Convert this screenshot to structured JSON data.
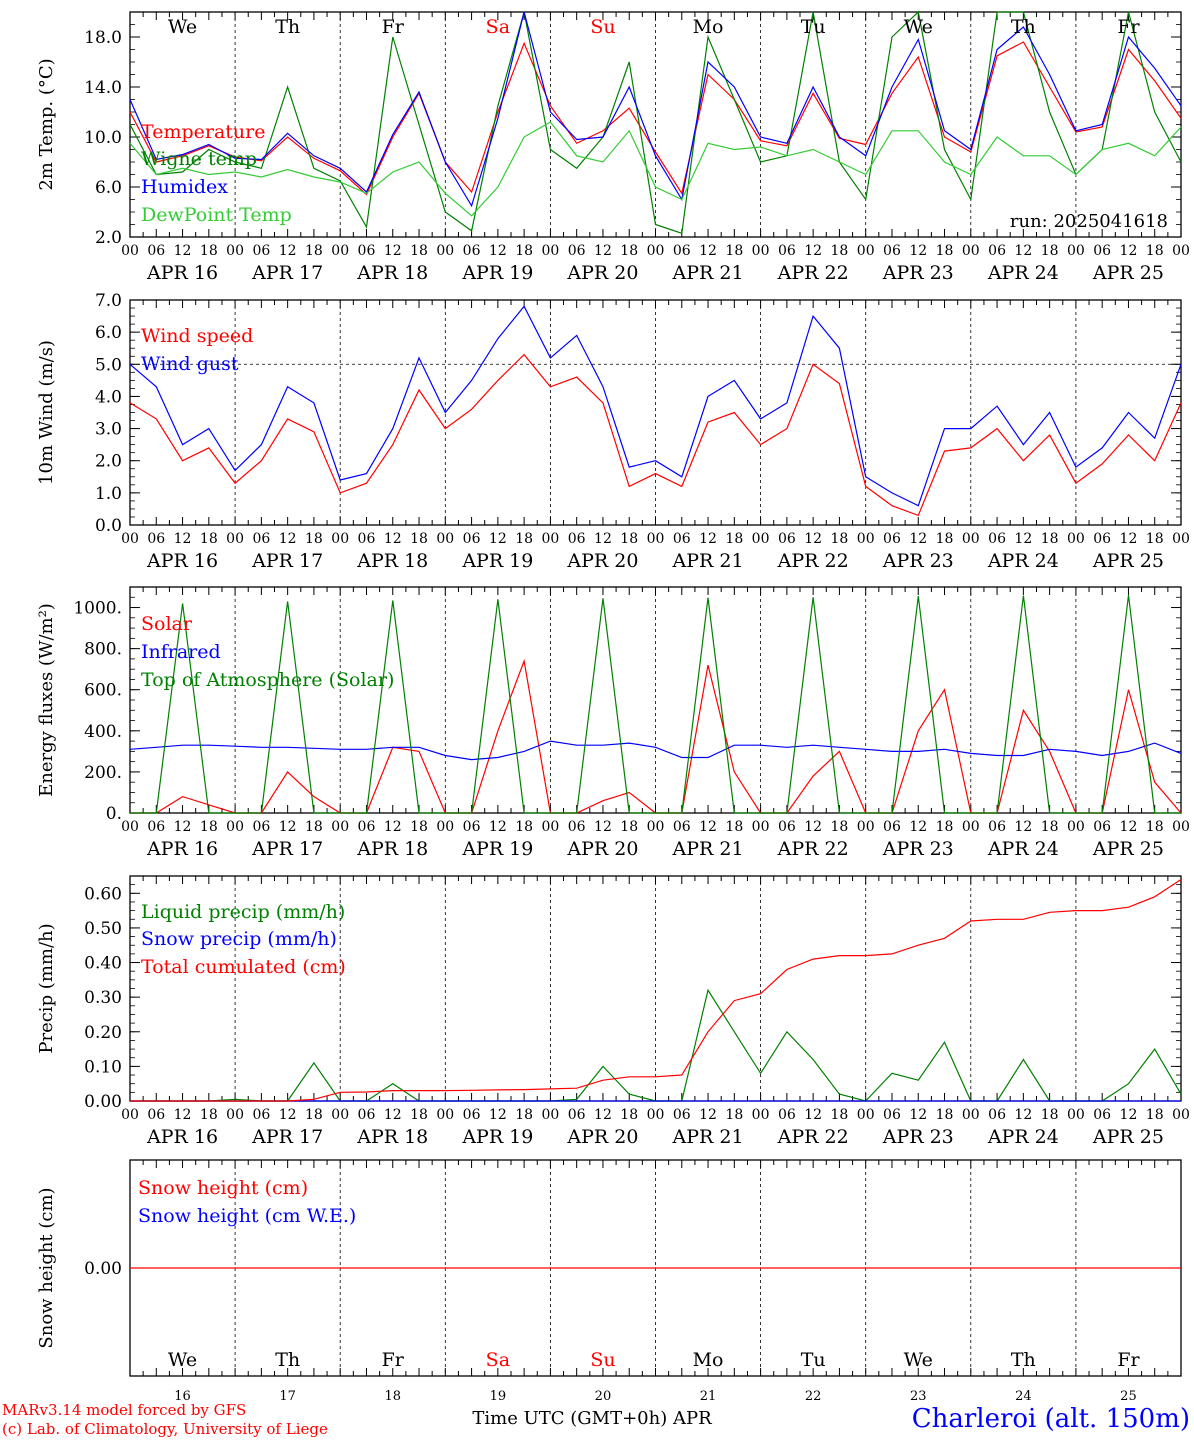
{
  "colors": {
    "red": "#ff0000",
    "blue": "#0000ff",
    "green": "#008000",
    "lightgreen": "#33cc33",
    "black": "#000000"
  },
  "day_abbr": [
    "We",
    "Th",
    "Fr",
    "Sa",
    "Su",
    "Mo",
    "Tu",
    "We",
    "Th",
    "Fr"
  ],
  "weekend_days": [
    3,
    4
  ],
  "date_labels": [
    "APR 16",
    "APR 17",
    "APR 18",
    "APR 19",
    "APR 20",
    "APR 21",
    "APR 22",
    "APR 23",
    "APR 24",
    "APR 25"
  ],
  "day_numbers": [
    "16",
    "17",
    "18",
    "19",
    "20",
    "21",
    "22",
    "23",
    "24",
    "25"
  ],
  "hour_ticks": [
    "00",
    "06",
    "12",
    "18"
  ],
  "hour_end": "00",
  "footer": {
    "model": "MARv3.14 model forced by GFS",
    "lab": "(c) Lab. of Climatology, University of Liege",
    "xlabel": "Time UTC (GMT+0h) APR",
    "station": "Charleroi (alt. 150m)"
  },
  "chart_data": [
    {
      "type": "line",
      "ylabel": "2m Temp. (°C)",
      "ylim": [
        2,
        20
      ],
      "yticks": [
        "2.0",
        "6.0",
        "10.0",
        "14.0",
        "18.0"
      ],
      "run_label": "run: 2025041618",
      "x_hours": [
        0,
        6,
        12,
        18,
        24,
        30,
        36,
        42,
        48,
        54,
        60,
        66,
        72,
        78,
        84,
        90,
        96,
        102,
        108,
        114,
        120,
        126,
        132,
        138,
        144,
        150,
        156,
        162,
        168,
        174,
        180,
        186,
        192,
        198,
        204,
        210,
        216,
        222,
        228,
        234,
        240
      ],
      "series": [
        {
          "name": "Temperature",
          "color": "#ff0000",
          "values": [
            12.0,
            8.0,
            8.5,
            9.3,
            8.4,
            8.1,
            10.0,
            8.3,
            7.3,
            5.4,
            10.0,
            13.5,
            8.0,
            5.6,
            12.0,
            17.5,
            12.5,
            9.5,
            10.5,
            12.3,
            8.8,
            5.5,
            15.0,
            13.0,
            9.7,
            9.3,
            13.5,
            9.9,
            9.4,
            13.5,
            16.4,
            10.0,
            8.8,
            16.5,
            17.6,
            14.0,
            10.4,
            10.8,
            17.0,
            14.5,
            11.5
          ]
        },
        {
          "name": "Wigne temp",
          "color": "#008000",
          "values": [
            11.0,
            7.0,
            7.2,
            9.0,
            8.0,
            7.5,
            14.0,
            7.5,
            6.5,
            2.8,
            18.0,
            11.0,
            4.0,
            2.5,
            12.5,
            20.0,
            9.0,
            7.5,
            10.0,
            16.0,
            3.0,
            2.3,
            18.0,
            13.0,
            8.0,
            8.5,
            20.0,
            8.0,
            5.0,
            18.0,
            20.0,
            9.0,
            5.0,
            20.0,
            20.0,
            12.0,
            7.0,
            9.0,
            20.0,
            12.0,
            8.0
          ]
        },
        {
          "name": "Humidex",
          "color": "#0000ff",
          "values": [
            13.0,
            8.2,
            8.6,
            9.4,
            8.3,
            8.2,
            10.3,
            8.5,
            7.5,
            5.6,
            10.2,
            13.6,
            8.0,
            4.5,
            11.5,
            20.0,
            12.0,
            9.8,
            10.0,
            14.0,
            8.5,
            5.0,
            16.0,
            14.0,
            10.0,
            9.5,
            14.0,
            10.0,
            8.5,
            14.0,
            17.8,
            10.5,
            9.0,
            17.0,
            18.8,
            15.0,
            10.5,
            11.0,
            18.0,
            15.5,
            12.5
          ]
        },
        {
          "name": "DewPoint Temp",
          "color": "#33cc33",
          "values": [
            9.5,
            7.0,
            7.5,
            7.0,
            7.2,
            6.8,
            7.4,
            6.8,
            6.4,
            5.5,
            7.2,
            8.0,
            5.5,
            3.7,
            6.0,
            10.0,
            11.2,
            8.5,
            8.0,
            10.5,
            6.0,
            5.0,
            9.5,
            9.0,
            9.2,
            8.5,
            9.0,
            8.0,
            7.0,
            10.5,
            10.5,
            8.0,
            7.0,
            10.0,
            8.5,
            8.5,
            7.0,
            9.0,
            9.5,
            8.5,
            10.8
          ]
        }
      ]
    },
    {
      "type": "line",
      "ylabel": "10m Wind (m/s)",
      "ylim": [
        0,
        7
      ],
      "yticks": [
        "0.0",
        "1.0",
        "2.0",
        "3.0",
        "4.0",
        "5.0",
        "6.0",
        "7.0"
      ],
      "reference_line": 5,
      "x_hours": [
        0,
        6,
        12,
        18,
        24,
        30,
        36,
        42,
        48,
        54,
        60,
        66,
        72,
        78,
        84,
        90,
        96,
        102,
        108,
        114,
        120,
        126,
        132,
        138,
        144,
        150,
        156,
        162,
        168,
        174,
        180,
        186,
        192,
        198,
        204,
        210,
        216,
        222,
        228,
        234,
        240
      ],
      "series": [
        {
          "name": "Wind speed",
          "color": "#ff0000",
          "values": [
            3.8,
            3.3,
            2.0,
            2.4,
            1.3,
            2.0,
            3.3,
            2.9,
            1.0,
            1.3,
            2.5,
            4.2,
            3.0,
            3.6,
            4.5,
            5.3,
            4.3,
            4.6,
            3.8,
            1.2,
            1.6,
            1.2,
            3.2,
            3.5,
            2.5,
            3.0,
            5.0,
            4.4,
            1.2,
            0.6,
            0.3,
            2.3,
            2.4,
            3.0,
            2.0,
            2.8,
            1.3,
            1.9,
            2.8,
            2.0,
            3.8
          ]
        },
        {
          "name": "Wind gust",
          "color": "#0000ff",
          "values": [
            5.0,
            4.3,
            2.5,
            3.0,
            1.7,
            2.5,
            4.3,
            3.8,
            1.4,
            1.6,
            3.0,
            5.2,
            3.5,
            4.5,
            5.8,
            6.8,
            5.2,
            5.9,
            4.3,
            1.8,
            2.0,
            1.5,
            4.0,
            4.5,
            3.3,
            3.8,
            6.5,
            5.5,
            1.5,
            1.0,
            0.6,
            3.0,
            3.0,
            3.7,
            2.5,
            3.5,
            1.8,
            2.4,
            3.5,
            2.7,
            5.0
          ]
        }
      ]
    },
    {
      "type": "line",
      "ylabel": "Energy fluxes (W/m²)",
      "ylim": [
        0,
        1100
      ],
      "yticks": [
        "0.",
        "200.",
        "400.",
        "600.",
        "800.",
        "1000."
      ],
      "x_hours": [
        0,
        6,
        12,
        18,
        24,
        30,
        36,
        42,
        48,
        54,
        60,
        66,
        72,
        78,
        84,
        90,
        96,
        102,
        108,
        114,
        120,
        126,
        132,
        138,
        144,
        150,
        156,
        162,
        168,
        174,
        180,
        186,
        192,
        198,
        204,
        210,
        216,
        222,
        228,
        234,
        240
      ],
      "series": [
        {
          "name": "Solar",
          "color": "#ff0000",
          "values": [
            0,
            0,
            80,
            40,
            0,
            0,
            200,
            80,
            0,
            0,
            320,
            300,
            0,
            0,
            400,
            740,
            0,
            0,
            60,
            100,
            0,
            0,
            720,
            200,
            0,
            0,
            180,
            300,
            0,
            0,
            400,
            600,
            0,
            0,
            500,
            300,
            0,
            0,
            600,
            150,
            0
          ]
        },
        {
          "name": "Infrared",
          "color": "#0000ff",
          "values": [
            310,
            320,
            330,
            330,
            325,
            320,
            320,
            315,
            310,
            310,
            320,
            320,
            280,
            260,
            270,
            300,
            350,
            330,
            330,
            340,
            320,
            270,
            270,
            330,
            330,
            320,
            330,
            320,
            310,
            300,
            300,
            310,
            290,
            280,
            280,
            310,
            300,
            280,
            300,
            340,
            290
          ]
        },
        {
          "name": "Top of Atmosphere (Solar)",
          "color": "#008000",
          "values": [
            0,
            0,
            1020,
            0,
            0,
            0,
            1030,
            0,
            0,
            0,
            1035,
            0,
            0,
            0,
            1040,
            0,
            0,
            0,
            1045,
            0,
            0,
            0,
            1048,
            0,
            0,
            0,
            1050,
            0,
            0,
            0,
            1055,
            0,
            0,
            0,
            1058,
            0,
            0,
            0,
            1060,
            0,
            0
          ]
        }
      ]
    },
    {
      "type": "line",
      "ylabel": "Precip (mm/h)",
      "ylim": [
        0,
        0.65
      ],
      "yticks": [
        "0.00",
        "0.10",
        "0.20",
        "0.30",
        "0.40",
        "0.50",
        "0.60"
      ],
      "x_hours": [
        0,
        6,
        12,
        18,
        24,
        30,
        36,
        42,
        48,
        54,
        60,
        66,
        72,
        78,
        84,
        90,
        96,
        102,
        108,
        114,
        120,
        126,
        132,
        138,
        144,
        150,
        156,
        162,
        168,
        174,
        180,
        186,
        192,
        198,
        204,
        210,
        216,
        222,
        228,
        234,
        240
      ],
      "series": [
        {
          "name": "Liquid precip (mm/h)",
          "color": "#008000",
          "values": [
            0,
            0,
            0,
            0,
            0.005,
            0,
            0,
            0.11,
            0,
            0,
            0.05,
            0,
            0,
            0,
            0,
            0,
            0,
            0.005,
            0.1,
            0.02,
            0,
            0,
            0.32,
            0.2,
            0.08,
            0.2,
            0.12,
            0.02,
            0,
            0.08,
            0.06,
            0.17,
            0,
            0,
            0.12,
            0,
            0,
            0,
            0.05,
            0.15,
            0.02
          ]
        },
        {
          "name": "Snow precip (mm/h)",
          "color": "#0000ff",
          "values": [
            0,
            0,
            0,
            0,
            0,
            0,
            0,
            0,
            0,
            0,
            0,
            0,
            0,
            0,
            0,
            0,
            0,
            0,
            0,
            0,
            0,
            0,
            0,
            0,
            0,
            0,
            0,
            0,
            0,
            0,
            0,
            0,
            0,
            0,
            0,
            0,
            0,
            0,
            0,
            0,
            0
          ]
        },
        {
          "name": "Total cumulated (cm)",
          "color": "#ff0000",
          "values": [
            0,
            0,
            0,
            0,
            0,
            0,
            0,
            0.005,
            0.025,
            0.026,
            0.03,
            0.03,
            0.03,
            0.031,
            0.032,
            0.033,
            0.035,
            0.037,
            0.06,
            0.07,
            0.07,
            0.075,
            0.2,
            0.29,
            0.31,
            0.38,
            0.41,
            0.42,
            0.42,
            0.425,
            0.45,
            0.47,
            0.52,
            0.525,
            0.525,
            0.545,
            0.55,
            0.55,
            0.56,
            0.59,
            0.64
          ]
        }
      ]
    },
    {
      "type": "line",
      "ylabel": "Snow height (cm)",
      "yticks": [
        "0.00"
      ],
      "x_hours": [
        0,
        240
      ],
      "series": [
        {
          "name": "Snow height (cm)",
          "color": "#ff0000",
          "values": [
            0,
            0
          ]
        },
        {
          "name": "Snow height (cm W.E.)",
          "color": "#0000ff",
          "values": [
            0,
            0
          ]
        }
      ]
    }
  ]
}
